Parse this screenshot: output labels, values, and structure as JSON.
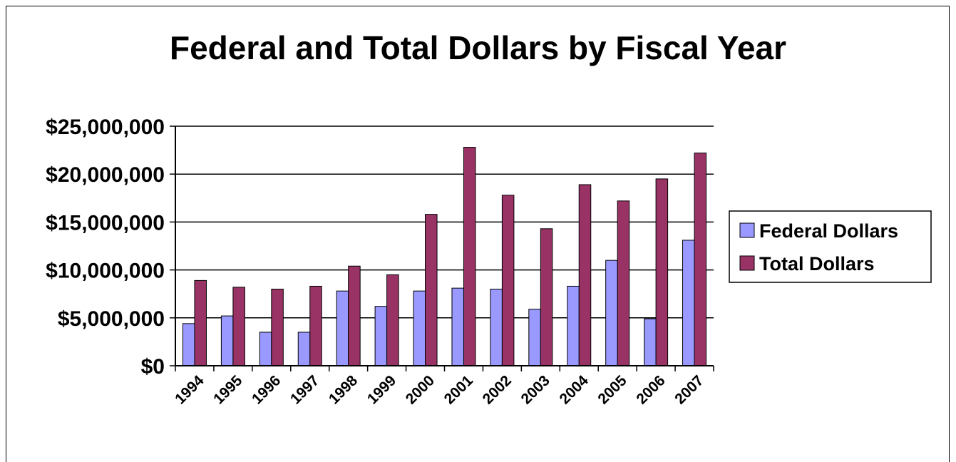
{
  "chart_data": {
    "type": "bar",
    "title": "Federal and Total Dollars by Fiscal Year",
    "xlabel": "",
    "ylabel": "",
    "ylim": [
      0,
      25000000
    ],
    "yticks": [
      0,
      5000000,
      10000000,
      15000000,
      20000000,
      25000000
    ],
    "ytick_labels": [
      "$0",
      "$5,000,000",
      "$10,000,000",
      "$15,000,000",
      "$20,000,000",
      "$25,000,000"
    ],
    "categories": [
      "1994",
      "1995",
      "1996",
      "1997",
      "1998",
      "1999",
      "2000",
      "2001",
      "2002",
      "2003",
      "2004",
      "2005",
      "2006",
      "2007"
    ],
    "series": [
      {
        "name": "Federal Dollars",
        "color": "#9999FF",
        "values": [
          4400000,
          5200000,
          3500000,
          3500000,
          7800000,
          6200000,
          7800000,
          8100000,
          8000000,
          5900000,
          8300000,
          11000000,
          4900000,
          13100000
        ]
      },
      {
        "name": "Total Dollars",
        "color": "#993366",
        "values": [
          8900000,
          8200000,
          8000000,
          8300000,
          10400000,
          9500000,
          15800000,
          22800000,
          17800000,
          14300000,
          18900000,
          17200000,
          19500000,
          22200000
        ]
      }
    ],
    "grid": true,
    "legend_position": "right"
  }
}
